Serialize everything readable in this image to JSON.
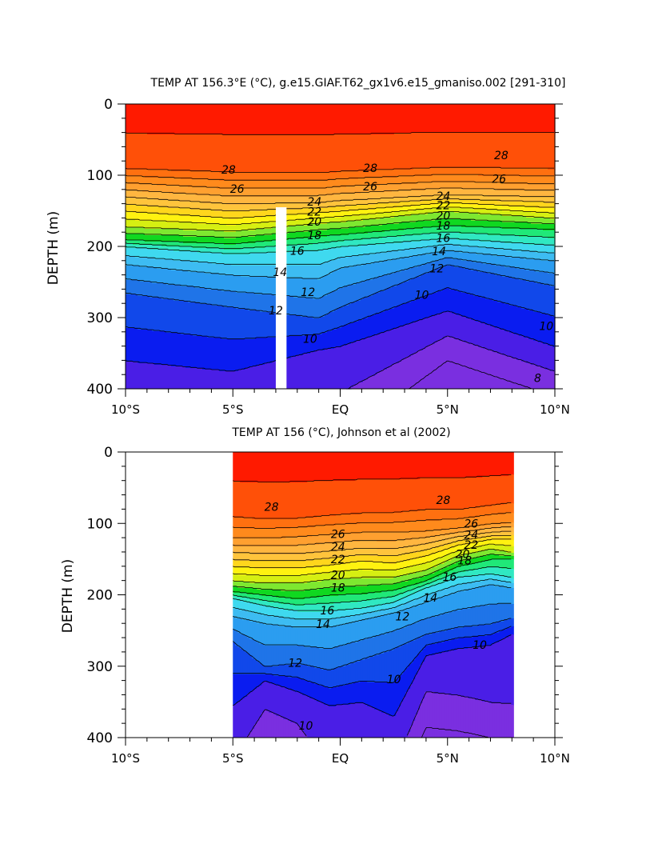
{
  "colors": {
    "levels": [
      [
        8,
        "#7a2fe0"
      ],
      [
        9,
        "#4a1ee6"
      ],
      [
        10,
        "#0a1cf0"
      ],
      [
        11,
        "#1148ea"
      ],
      [
        12,
        "#1f74e8"
      ],
      [
        13,
        "#2b9df0"
      ],
      [
        14,
        "#3dbcf2"
      ],
      [
        15,
        "#3fd9ef"
      ],
      [
        16,
        "#30e8c2"
      ],
      [
        17,
        "#20e878"
      ],
      [
        18,
        "#10d820"
      ],
      [
        19,
        "#7ee830"
      ],
      [
        20,
        "#d6ef12"
      ],
      [
        21,
        "#fff210"
      ],
      [
        22,
        "#ffd61c"
      ],
      [
        23,
        "#ffc43c"
      ],
      [
        24,
        "#ffb640"
      ],
      [
        25,
        "#ffa030"
      ],
      [
        26,
        "#ff8a1c"
      ],
      [
        27,
        "#ff7010"
      ],
      [
        28,
        "#ff5008"
      ],
      [
        29,
        "#ff1a00"
      ],
      [
        30,
        "#e60000"
      ]
    ],
    "missing": "#ffffff",
    "line": "#000000"
  },
  "chart_data": [
    {
      "type": "contour",
      "title": "TEMP AT 156.3°E (°C), g.e15.GIAF.T62_gx1v6.e15_gmaniso.002 [291-310]",
      "xlabel": "",
      "ylabel": "DEPTH (m)",
      "xlim": [
        -10,
        10
      ],
      "ylim": [
        400,
        0
      ],
      "xticks": [
        -10,
        -5,
        0,
        5,
        10
      ],
      "xtick_labels": [
        "10°S",
        "5°S",
        "EQ",
        "5°N",
        "10°N"
      ],
      "yticks": [
        0,
        100,
        200,
        300,
        400
      ],
      "ytick_labels": [
        "0",
        "100",
        "200",
        "300",
        "400"
      ],
      "data_x": [
        -10,
        10
      ],
      "contour_levels": [
        8,
        9,
        10,
        11,
        12,
        13,
        14,
        15,
        16,
        17,
        18,
        19,
        20,
        21,
        22,
        23,
        24,
        25,
        26,
        27,
        28,
        29
      ],
      "missing_column": {
        "x0": -3.0,
        "x1": -2.5,
        "depth_top": 145
      },
      "series": [
        {
          "name": "isotherm_depth_profiles",
          "x": [
            -10,
            -5,
            -1,
            0,
            5,
            10
          ],
          "iso_depth": {
            "8": [
              480,
              480,
              470,
              470,
              360,
              410
            ],
            "10": [
              360,
              375,
              345,
              340,
              290,
              340
            ],
            "12": [
              265,
              285,
              300,
              285,
              225,
              255
            ],
            "14": [
              225,
              240,
              245,
              230,
              205,
              220
            ],
            "16": [
              200,
              210,
              205,
              200,
              188,
              198
            ],
            "18": [
              190,
              196,
              185,
              183,
              170,
              176
            ],
            "20": [
              172,
              178,
              167,
              165,
              150,
              160
            ],
            "22": [
              150,
              160,
              152,
              150,
              138,
              145
            ],
            "24": [
              130,
              140,
              138,
              135,
              127,
              130
            ],
            "26": [
              110,
              118,
              118,
              115,
              108,
              112
            ],
            "28": [
              90,
              95,
              96,
              94,
              88,
              90
            ]
          },
          "surface_max": 29.8,
          "surface_min_depth_29": 55
        }
      ],
      "contour_labels": [
        {
          "text": "28",
          "x": -5.2,
          "y": 92
        },
        {
          "text": "28",
          "x": 1.4,
          "y": 90
        },
        {
          "text": "28",
          "x": 7.5,
          "y": 72
        },
        {
          "text": "26",
          "x": -4.8,
          "y": 119
        },
        {
          "text": "26",
          "x": 1.4,
          "y": 116
        },
        {
          "text": "26",
          "x": 7.4,
          "y": 105
        },
        {
          "text": "24",
          "x": -1.2,
          "y": 137
        },
        {
          "text": "24",
          "x": 4.8,
          "y": 129
        },
        {
          "text": "22",
          "x": -1.2,
          "y": 151
        },
        {
          "text": "22",
          "x": 4.8,
          "y": 142
        },
        {
          "text": "20",
          "x": -1.2,
          "y": 165
        },
        {
          "text": "20",
          "x": 4.8,
          "y": 157
        },
        {
          "text": "18",
          "x": -1.2,
          "y": 184
        },
        {
          "text": "18",
          "x": 4.8,
          "y": 171
        },
        {
          "text": "16",
          "x": -2.0,
          "y": 206
        },
        {
          "text": "16",
          "x": 4.8,
          "y": 188
        },
        {
          "text": "14",
          "x": -2.8,
          "y": 236
        },
        {
          "text": "14",
          "x": 4.6,
          "y": 207
        },
        {
          "text": "12",
          "x": -1.5,
          "y": 264
        },
        {
          "text": "12",
          "x": 4.5,
          "y": 231
        },
        {
          "text": "12",
          "x": -3.0,
          "y": 290
        },
        {
          "text": "10",
          "x": 3.8,
          "y": 268
        },
        {
          "text": "10",
          "x": -1.4,
          "y": 330
        },
        {
          "text": "10",
          "x": 9.6,
          "y": 312
        },
        {
          "text": "8",
          "x": 9.2,
          "y": 385
        }
      ]
    },
    {
      "type": "contour",
      "title": "TEMP AT 156 (°C), Johnson et al (2002)",
      "xlabel": "",
      "ylabel": "DEPTH (m)",
      "xlim": [
        -10,
        10
      ],
      "ylim": [
        400,
        0
      ],
      "xticks": [
        -10,
        -5,
        0,
        5,
        10
      ],
      "xtick_labels": [
        "10°S",
        "5°S",
        "EQ",
        "5°N",
        "10°N"
      ],
      "yticks": [
        0,
        100,
        200,
        300,
        400
      ],
      "ytick_labels": [
        "0",
        "100",
        "200",
        "300",
        "400"
      ],
      "data_x": [
        -5,
        8
      ],
      "contour_levels": [
        8,
        9,
        10,
        11,
        12,
        13,
        14,
        15,
        16,
        17,
        18,
        19,
        20,
        21,
        22,
        23,
        24,
        25,
        26,
        27,
        28,
        29
      ],
      "series": [
        {
          "name": "isotherm_depth_profiles",
          "x": [
            -5,
            -3.5,
            -2,
            -0.5,
            1,
            2.5,
            4,
            5.5,
            7,
            8
          ],
          "iso_depth": {
            "9": [
              430,
              360,
              380,
              440,
              440,
              440,
              335,
              340,
              350,
              352
            ],
            "10": [
              355,
              320,
              335,
              355,
              350,
              370,
              285,
              275,
              270,
              255
            ],
            "12": [
              265,
              300,
              295,
              305,
              290,
              275,
              255,
              245,
              240,
              232
            ],
            "14": [
              230,
              240,
              245,
              245,
              235,
              225,
              210,
              195,
              185,
              190
            ],
            "16": [
              205,
              215,
              222,
              222,
              218,
              210,
              190,
              175,
              170,
              175
            ],
            "18": [
              195,
              200,
              205,
              200,
              198,
              193,
              180,
              160,
              150,
              150
            ],
            "20": [
              180,
              183,
              183,
              178,
              175,
              175,
              165,
              145,
              135,
              140
            ],
            "22": [
              160,
              162,
              162,
              158,
              152,
              155,
              145,
              130,
              122,
              122
            ],
            "24": [
              140,
              142,
              142,
              138,
              134,
              135,
              128,
              118,
              112,
              110
            ],
            "26": [
              120,
              120,
              118,
              115,
              112,
              112,
              110,
              106,
              100,
              98
            ],
            "28": [
              90,
              93,
              92,
              88,
              85,
              84,
              80,
              80,
              74,
              70
            ]
          },
          "surface_max": 29.8
        }
      ],
      "contour_labels": [
        {
          "text": "28",
          "x": -3.2,
          "y": 77
        },
        {
          "text": "28",
          "x": 4.8,
          "y": 67
        },
        {
          "text": "26",
          "x": -0.1,
          "y": 115
        },
        {
          "text": "26",
          "x": 6.1,
          "y": 100
        },
        {
          "text": "24",
          "x": -0.1,
          "y": 133
        },
        {
          "text": "24",
          "x": 6.1,
          "y": 116
        },
        {
          "text": "22",
          "x": -0.1,
          "y": 150
        },
        {
          "text": "22",
          "x": 6.1,
          "y": 130
        },
        {
          "text": "20",
          "x": -0.1,
          "y": 172
        },
        {
          "text": "20",
          "x": 5.7,
          "y": 143
        },
        {
          "text": "18",
          "x": -0.1,
          "y": 190
        },
        {
          "text": "18",
          "x": 5.8,
          "y": 152
        },
        {
          "text": "16",
          "x": -0.6,
          "y": 222
        },
        {
          "text": "16",
          "x": 5.1,
          "y": 175
        },
        {
          "text": "14",
          "x": -0.8,
          "y": 241
        },
        {
          "text": "14",
          "x": 4.2,
          "y": 204
        },
        {
          "text": "12",
          "x": 2.9,
          "y": 230
        },
        {
          "text": "12",
          "x": -2.1,
          "y": 295
        },
        {
          "text": "10",
          "x": 2.5,
          "y": 318
        },
        {
          "text": "10",
          "x": 6.5,
          "y": 270
        },
        {
          "text": "10",
          "x": -1.6,
          "y": 383
        }
      ]
    }
  ]
}
